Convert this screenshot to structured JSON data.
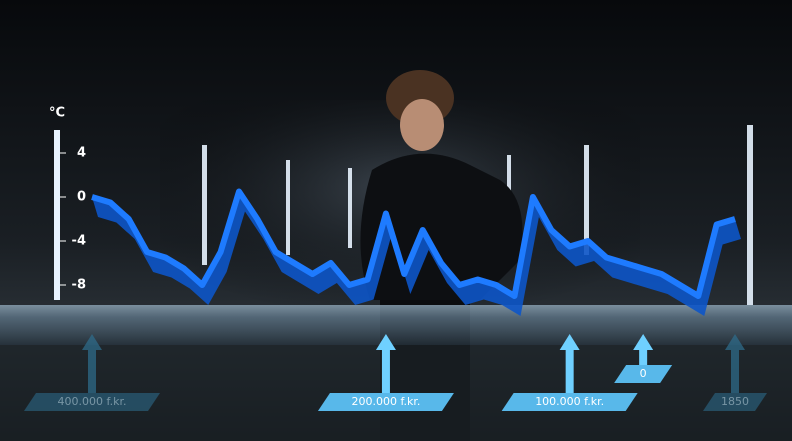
{
  "chart_data": {
    "type": "line",
    "y_label": "°C",
    "ylim": [
      -9.5,
      6
    ],
    "yticks": [
      4,
      0,
      -4,
      -8
    ],
    "categories": [
      "400.000 f.kr.",
      null,
      null,
      null,
      null,
      null,
      null,
      null,
      null,
      null,
      null,
      null,
      null,
      null,
      null,
      null,
      "200.000 f.kr.",
      null,
      null,
      null,
      null,
      null,
      null,
      null,
      null,
      null,
      "100.000 f.kr.",
      null,
      null,
      null,
      "0",
      null,
      null,
      null,
      null,
      "1850"
    ],
    "values": [
      0,
      -0.5,
      -2,
      -5,
      -5.5,
      -6.5,
      -8,
      -5,
      0.5,
      -2,
      -5,
      -6,
      -7,
      -6,
      -8,
      -7.5,
      -1.5,
      -7,
      -3,
      -6,
      -8,
      -7.5,
      -8,
      -9,
      0,
      -3,
      -4.5,
      -4,
      -5.5,
      -6,
      -6.5,
      -7,
      -8,
      -9,
      -2.5,
      -2
    ],
    "color": "#1e7bff"
  }
}
